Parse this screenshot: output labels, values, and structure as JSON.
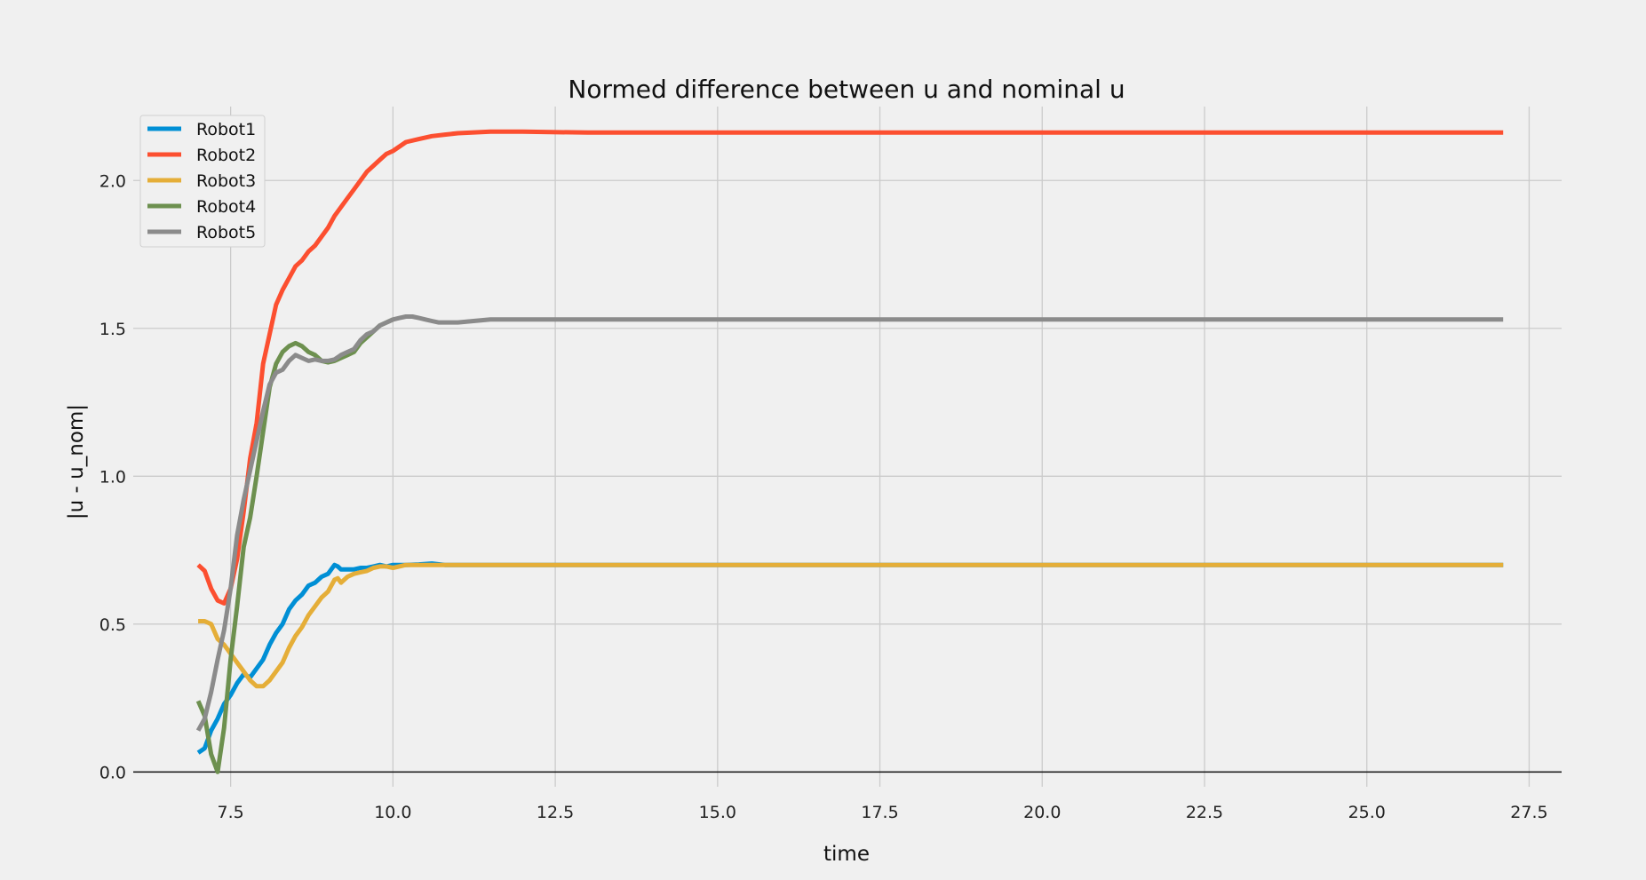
{
  "chart_data": {
    "type": "line",
    "title": "Normed difference between u and nominal u",
    "xlabel": "time",
    "ylabel": "|u - u_nom|",
    "xlim": [
      6.0,
      28.0
    ],
    "ylim": [
      -0.05,
      2.25
    ],
    "xticks": [
      "7.5",
      "10.0",
      "12.5",
      "15.0",
      "17.5",
      "20.0",
      "22.5",
      "25.0",
      "27.5"
    ],
    "yticks": [
      "0.0",
      "0.5",
      "1.0",
      "1.5",
      "2.0"
    ],
    "grid": true,
    "legend_position": "top-left",
    "series": [
      {
        "name": "Robot1",
        "color": "#008fd5",
        "x": [
          7.0,
          7.1,
          7.2,
          7.3,
          7.4,
          7.5,
          7.6,
          7.7,
          7.8,
          7.9,
          8.0,
          8.1,
          8.2,
          8.3,
          8.4,
          8.5,
          8.6,
          8.7,
          8.8,
          8.9,
          9.0,
          9.1,
          9.15,
          9.2,
          9.3,
          9.4,
          9.5,
          9.6,
          9.7,
          9.8,
          9.9,
          10.0,
          10.2,
          10.4,
          10.6,
          10.8,
          11.0,
          11.5,
          12.0,
          13.0,
          15.0,
          20.0,
          25.0,
          27.1
        ],
        "y": [
          0.065,
          0.08,
          0.14,
          0.18,
          0.23,
          0.26,
          0.3,
          0.33,
          0.32,
          0.35,
          0.38,
          0.43,
          0.47,
          0.5,
          0.55,
          0.58,
          0.6,
          0.63,
          0.64,
          0.66,
          0.67,
          0.7,
          0.695,
          0.685,
          0.685,
          0.685,
          0.69,
          0.69,
          0.695,
          0.7,
          0.695,
          0.7,
          0.7,
          0.702,
          0.705,
          0.7,
          0.7,
          0.7,
          0.7,
          0.7,
          0.7,
          0.7,
          0.7,
          0.7
        ]
      },
      {
        "name": "Robot2",
        "color": "#fc4f30",
        "x": [
          7.0,
          7.1,
          7.2,
          7.3,
          7.4,
          7.5,
          7.6,
          7.7,
          7.8,
          7.9,
          8.0,
          8.1,
          8.2,
          8.3,
          8.4,
          8.5,
          8.6,
          8.7,
          8.8,
          8.9,
          9.0,
          9.1,
          9.2,
          9.3,
          9.4,
          9.5,
          9.6,
          9.7,
          9.8,
          9.9,
          10.0,
          10.2,
          10.4,
          10.6,
          10.8,
          11.0,
          11.5,
          12.0,
          13.0,
          15.0,
          20.0,
          25.0,
          27.1
        ],
        "y": [
          0.7,
          0.68,
          0.62,
          0.58,
          0.57,
          0.62,
          0.72,
          0.88,
          1.06,
          1.18,
          1.38,
          1.48,
          1.58,
          1.63,
          1.67,
          1.71,
          1.73,
          1.76,
          1.78,
          1.81,
          1.84,
          1.88,
          1.91,
          1.94,
          1.97,
          2.0,
          2.03,
          2.05,
          2.07,
          2.09,
          2.1,
          2.13,
          2.14,
          2.15,
          2.155,
          2.16,
          2.165,
          2.165,
          2.162,
          2.162,
          2.162,
          2.162,
          2.162
        ]
      },
      {
        "name": "Robot3",
        "color": "#e5ae38",
        "x": [
          7.0,
          7.1,
          7.2,
          7.3,
          7.4,
          7.5,
          7.6,
          7.7,
          7.8,
          7.9,
          8.0,
          8.1,
          8.2,
          8.3,
          8.4,
          8.5,
          8.6,
          8.7,
          8.8,
          8.9,
          9.0,
          9.1,
          9.15,
          9.2,
          9.3,
          9.4,
          9.5,
          9.6,
          9.7,
          9.8,
          9.9,
          10.0,
          10.2,
          10.4,
          10.6,
          10.8,
          11.0,
          11.5,
          12.0,
          13.0,
          15.0,
          20.0,
          25.0,
          27.1
        ],
        "y": [
          0.51,
          0.51,
          0.5,
          0.45,
          0.43,
          0.4,
          0.37,
          0.34,
          0.31,
          0.29,
          0.29,
          0.31,
          0.34,
          0.37,
          0.42,
          0.46,
          0.49,
          0.53,
          0.56,
          0.59,
          0.61,
          0.65,
          0.655,
          0.64,
          0.66,
          0.67,
          0.675,
          0.68,
          0.69,
          0.695,
          0.695,
          0.69,
          0.7,
          0.7,
          0.7,
          0.7,
          0.7,
          0.7,
          0.7,
          0.7,
          0.7,
          0.7,
          0.7,
          0.7
        ]
      },
      {
        "name": "Robot4",
        "color": "#6d904f",
        "x": [
          7.0,
          7.1,
          7.2,
          7.3,
          7.4,
          7.5,
          7.6,
          7.7,
          7.8,
          7.9,
          8.0,
          8.1,
          8.2,
          8.3,
          8.4,
          8.5,
          8.6,
          8.7,
          8.8,
          8.9,
          9.0,
          9.1,
          9.2,
          9.3,
          9.4,
          9.5,
          9.6,
          9.7,
          9.8,
          9.9,
          10.0
        ],
        "y": [
          0.24,
          0.19,
          0.06,
          0.0,
          0.15,
          0.38,
          0.56,
          0.76,
          0.86,
          1.0,
          1.15,
          1.3,
          1.38,
          1.42,
          1.44,
          1.45,
          1.44,
          1.42,
          1.41,
          1.39,
          1.385,
          1.39,
          1.4,
          1.41,
          1.42,
          1.45,
          1.47,
          1.49,
          1.51,
          1.52,
          1.53
        ]
      },
      {
        "name": "Robot5",
        "color": "#8b8b8b",
        "x": [
          7.0,
          7.1,
          7.2,
          7.3,
          7.4,
          7.5,
          7.6,
          7.7,
          7.8,
          7.9,
          8.0,
          8.1,
          8.2,
          8.3,
          8.4,
          8.5,
          8.6,
          8.7,
          8.8,
          8.9,
          9.0,
          9.1,
          9.2,
          9.3,
          9.4,
          9.5,
          9.6,
          9.7,
          9.8,
          9.9,
          10.0,
          10.1,
          10.2,
          10.3,
          10.4,
          10.5,
          10.6,
          10.7,
          10.8,
          11.0,
          11.5,
          12.0,
          13.0,
          15.0,
          20.0,
          25.0,
          27.1
        ],
        "y": [
          0.14,
          0.18,
          0.27,
          0.38,
          0.48,
          0.62,
          0.8,
          0.92,
          1.02,
          1.12,
          1.22,
          1.31,
          1.35,
          1.36,
          1.39,
          1.41,
          1.4,
          1.39,
          1.395,
          1.39,
          1.39,
          1.395,
          1.41,
          1.42,
          1.43,
          1.46,
          1.48,
          1.49,
          1.51,
          1.52,
          1.53,
          1.535,
          1.54,
          1.54,
          1.535,
          1.53,
          1.525,
          1.52,
          1.52,
          1.52,
          1.53,
          1.53,
          1.53,
          1.53,
          1.53,
          1.53,
          1.53
        ]
      }
    ]
  }
}
